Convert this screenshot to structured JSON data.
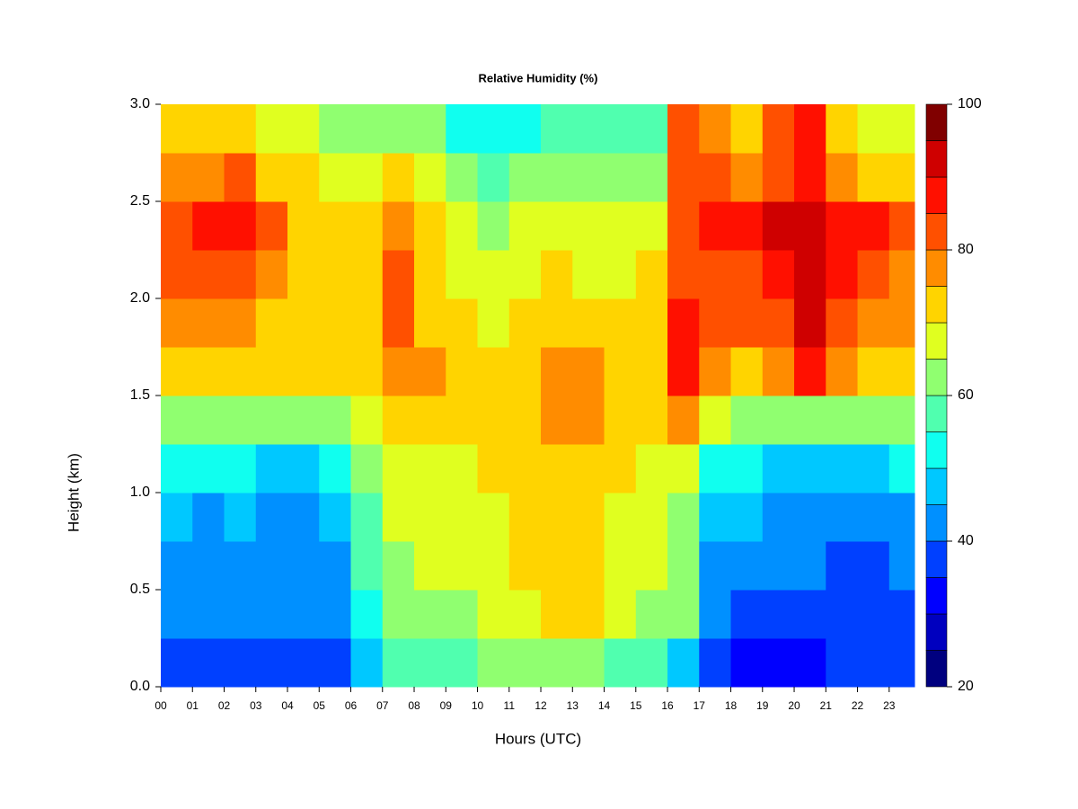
{
  "chart_data": {
    "type": "heatmap",
    "title": "Relative Humidity (%)",
    "x_label": "Hours (UTC)",
    "y_label": "Height (km)",
    "x": [
      0,
      1,
      2,
      3,
      4,
      5,
      6,
      7,
      8,
      9,
      10,
      11,
      12,
      13,
      14,
      15,
      16,
      17,
      18,
      19,
      20,
      21,
      22,
      23
    ],
    "y": [
      0,
      0.25,
      0.5,
      0.75,
      1.0,
      1.25,
      1.5,
      1.75,
      2.0,
      2.25,
      2.5,
      2.75
    ],
    "z": [
      [
        38,
        38,
        38,
        38,
        38,
        38,
        48,
        57,
        58,
        58,
        60,
        62,
        64,
        63,
        58,
        55,
        48,
        38,
        33,
        33,
        34,
        36,
        36,
        36
      ],
      [
        40,
        40,
        40,
        40,
        40,
        40,
        52,
        62,
        63,
        64,
        66,
        68,
        72,
        72,
        66,
        62,
        60,
        42,
        38,
        38,
        38,
        38,
        38,
        38
      ],
      [
        42,
        41,
        42,
        42,
        41,
        42,
        55,
        63,
        65,
        66,
        67,
        70,
        73,
        72,
        68,
        65,
        62,
        44,
        42,
        41,
        40,
        39,
        39,
        40
      ],
      [
        45,
        44,
        45,
        44,
        44,
        45,
        57,
        65,
        66,
        67,
        68,
        70,
        72,
        71,
        68,
        66,
        63,
        46,
        45,
        44,
        43,
        43,
        42,
        44
      ],
      [
        50,
        50,
        50,
        49,
        49,
        50,
        60,
        67,
        67,
        68,
        70,
        72,
        74,
        73,
        70,
        68,
        66,
        52,
        50,
        49,
        49,
        49,
        49,
        50
      ],
      [
        62,
        62,
        63,
        62,
        61,
        62,
        66,
        72,
        73,
        72,
        72,
        74,
        76,
        77,
        72,
        72,
        78,
        66,
        62,
        62,
        62,
        62,
        61,
        62
      ],
      [
        73,
        74,
        74,
        72,
        70,
        70,
        72,
        78,
        76,
        72,
        70,
        74,
        77,
        78,
        74,
        74,
        86,
        78,
        74,
        76,
        88,
        76,
        74,
        72
      ],
      [
        76,
        78,
        78,
        74,
        72,
        70,
        74,
        80,
        74,
        70,
        68,
        70,
        72,
        72,
        70,
        72,
        86,
        82,
        80,
        82,
        92,
        80,
        78,
        76
      ],
      [
        80,
        82,
        84,
        78,
        74,
        70,
        72,
        80,
        74,
        68,
        66,
        68,
        70,
        68,
        68,
        70,
        84,
        84,
        84,
        86,
        92,
        86,
        82,
        78
      ],
      [
        84,
        86,
        88,
        80,
        74,
        70,
        70,
        76,
        72,
        66,
        64,
        66,
        68,
        66,
        66,
        68,
        80,
        86,
        86,
        90,
        94,
        88,
        86,
        80
      ],
      [
        76,
        78,
        80,
        74,
        70,
        66,
        66,
        70,
        66,
        62,
        58,
        60,
        62,
        62,
        62,
        64,
        80,
        80,
        76,
        84,
        86,
        78,
        74,
        70
      ],
      [
        70,
        72,
        74,
        68,
        66,
        62,
        62,
        64,
        60,
        54,
        52,
        54,
        56,
        56,
        56,
        58,
        82,
        78,
        72,
        84,
        86,
        72,
        68,
        66
      ]
    ],
    "xlim": [
      0,
      23.8
    ],
    "ylim": [
      0,
      3
    ],
    "xticks": [
      {
        "value": 0,
        "label": "00"
      },
      {
        "value": 1,
        "label": "01"
      },
      {
        "value": 2,
        "label": "02"
      },
      {
        "value": 3,
        "label": "03"
      },
      {
        "value": 4,
        "label": "04"
      },
      {
        "value": 5,
        "label": "05"
      },
      {
        "value": 6,
        "label": "06"
      },
      {
        "value": 7,
        "label": "07"
      },
      {
        "value": 8,
        "label": "08"
      },
      {
        "value": 9,
        "label": "09"
      },
      10,
      11,
      12,
      13,
      14,
      15,
      16,
      17,
      18,
      19,
      20,
      21,
      22,
      23
    ],
    "yticks": [
      {
        "value": 0,
        "label": "0.0"
      },
      {
        "value": 0.5,
        "label": "0.5"
      },
      {
        "value": 1,
        "label": "1.0"
      },
      {
        "value": 1.5,
        "label": "1.5"
      },
      {
        "value": 2,
        "label": "2.0"
      },
      {
        "value": 2.5,
        "label": "2.5"
      },
      {
        "value": 3,
        "label": "3.0"
      }
    ],
    "colorbar": {
      "levels": [
        20,
        25,
        30,
        35,
        40,
        45,
        50,
        55,
        60,
        65,
        70,
        75,
        80,
        85,
        90,
        95,
        100
      ],
      "colors": [
        "#00007f",
        "#0000bf",
        "#0000ff",
        "#0040ff",
        "#0090ff",
        "#00c8ff",
        "#10ffef",
        "#50ffaf",
        "#90ff70",
        "#e0ff20",
        "#ffd400",
        "#ff8c00",
        "#ff5000",
        "#ff1000",
        "#cf0000",
        "#800000"
      ],
      "ticks": [
        20,
        40,
        60,
        80,
        100
      ]
    }
  }
}
